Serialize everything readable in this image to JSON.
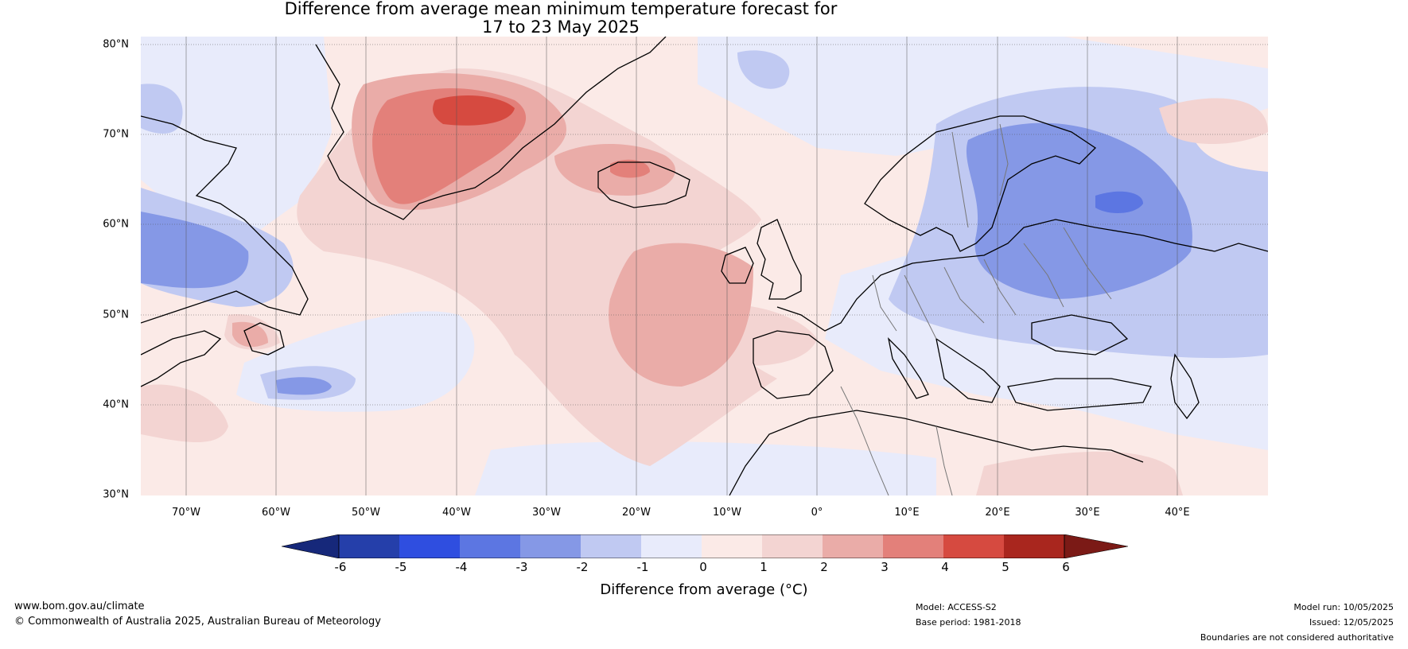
{
  "title": {
    "line1": "Difference from average mean minimum temperature forecast for",
    "line2": "17 to 23 May 2025"
  },
  "map": {
    "lat_labels": [
      "80°N",
      "70°N",
      "60°N",
      "50°N",
      "40°N",
      "30°N"
    ],
    "lon_labels": [
      "70°W",
      "60°W",
      "50°W",
      "40°W",
      "30°W",
      "20°W",
      "10°W",
      "0°",
      "10°E",
      "20°E",
      "30°E",
      "40°E"
    ],
    "colors": {
      "neg_6_5": "#253faa",
      "neg_5_4": "#2f4ee0",
      "neg_4_3": "#5c76e2",
      "neg_3_2": "#8598e6",
      "neg_2_1": "#c0c9f2",
      "neg_1_0": "#e8ebfb",
      "pos_0_1": "#fbeae7",
      "pos_1_2": "#f3d4d2",
      "pos_2_3": "#eaaca8",
      "pos_3_4": "#e3807a",
      "pos_4_5": "#d64a40",
      "pos_5_6": "#a9261e",
      "below_min": "#16287a",
      "above_max": "#7b1a16"
    }
  },
  "colorbar": {
    "ticks": [
      "-6",
      "-5",
      "-4",
      "-3",
      "-2",
      "-1",
      "0",
      "1",
      "2",
      "3",
      "4",
      "5",
      "6"
    ],
    "label": "Difference from average (°C)"
  },
  "footer": {
    "website": "www.bom.gov.au/climate",
    "copyright": "© Commonwealth of Australia 2025, Australian Bureau of Meteorology",
    "model": "Model: ACCESS-S2",
    "base_period": "Base period: 1981-2018",
    "model_run": "Model run: 10/05/2025",
    "issued": "Issued: 12/05/2025",
    "disclaimer": "Boundaries are not considered authoritative"
  }
}
